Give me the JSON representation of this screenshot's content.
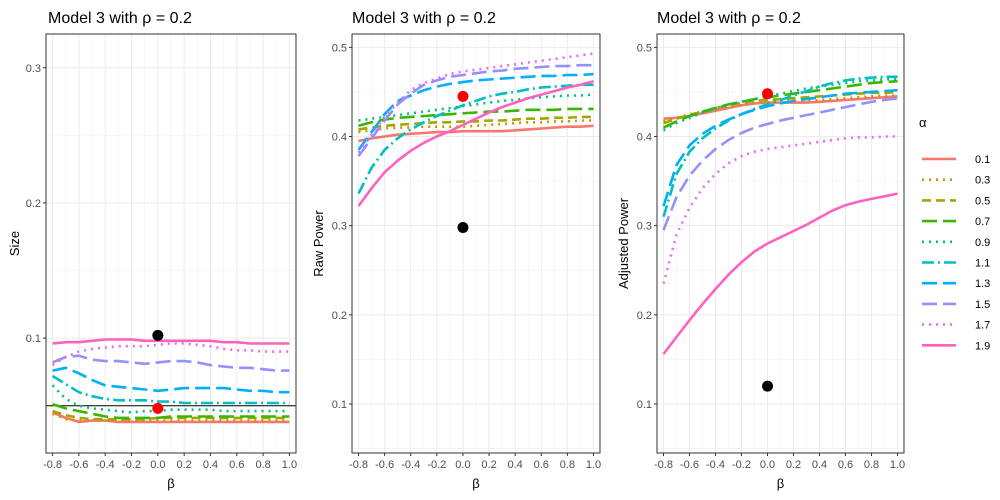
{
  "chart_data": {
    "type": "line",
    "legend": {
      "title": "α",
      "position": "right",
      "entries": [
        {
          "label": "0.1",
          "color": "#F8766D",
          "dash": "solid"
        },
        {
          "label": "0.3",
          "color": "#D89000",
          "dash": "dot"
        },
        {
          "label": "0.5",
          "color": "#A3A500",
          "dash": "dash"
        },
        {
          "label": "0.7",
          "color": "#39B600",
          "dash": "longdash"
        },
        {
          "label": "0.9",
          "color": "#00BF7D",
          "dash": "dot"
        },
        {
          "label": "1.1",
          "color": "#00BFC4",
          "dash": "dashdot"
        },
        {
          "label": "1.3",
          "color": "#00B0F6",
          "dash": "longdash"
        },
        {
          "label": "1.5",
          "color": "#9590FF",
          "dash": "longdash"
        },
        {
          "label": "1.7",
          "color": "#E76BF3",
          "dash": "dot"
        },
        {
          "label": "1.9",
          "color": "#FF62BC",
          "dash": "solid"
        }
      ]
    },
    "panels": [
      {
        "title": "Model 3 with ρ =  0.2",
        "xlabel": "β",
        "ylabel": "Size",
        "xlim": [
          -0.85,
          1.05
        ],
        "ylim": [
          0.015,
          0.325
        ],
        "yticks": [
          0.1,
          0.2,
          0.3
        ],
        "ytick_labels": [
          "0.1",
          "0.2",
          "0.3"
        ],
        "x": [
          -0.8,
          -0.7,
          -0.6,
          -0.5,
          -0.4,
          -0.3,
          -0.2,
          -0.1,
          0.0,
          0.1,
          0.2,
          0.3,
          0.4,
          0.5,
          0.6,
          0.7,
          0.8,
          0.9,
          1.0
        ],
        "hline": 0.05,
        "points": [
          {
            "x": 0.0,
            "y": 0.102,
            "color": "#000000"
          },
          {
            "x": 0.0,
            "y": 0.048,
            "color": "#FF0000"
          }
        ],
        "series": [
          {
            "name": "0.1",
            "values": [
              0.045,
              0.041,
              0.038,
              0.039,
              0.039,
              0.038,
              0.038,
              0.038,
              0.038,
              0.038,
              0.038,
              0.038,
              0.038,
              0.038,
              0.038,
              0.038,
              0.038,
              0.038,
              0.038
            ]
          },
          {
            "name": "0.3",
            "values": [
              0.044,
              0.04,
              0.039,
              0.04,
              0.039,
              0.039,
              0.039,
              0.039,
              0.039,
              0.039,
              0.039,
              0.039,
              0.039,
              0.039,
              0.039,
              0.039,
              0.039,
              0.039,
              0.039
            ]
          },
          {
            "name": "0.5",
            "values": [
              0.046,
              0.043,
              0.041,
              0.04,
              0.04,
              0.04,
              0.04,
              0.04,
              0.041,
              0.041,
              0.041,
              0.041,
              0.041,
              0.041,
              0.041,
              0.041,
              0.041,
              0.041,
              0.041
            ]
          },
          {
            "name": "0.7",
            "values": [
              0.051,
              0.048,
              0.046,
              0.044,
              0.042,
              0.041,
              0.041,
              0.041,
              0.041,
              0.042,
              0.042,
              0.042,
              0.042,
              0.042,
              0.042,
              0.042,
              0.042,
              0.042,
              0.042
            ]
          },
          {
            "name": "0.9",
            "values": [
              0.065,
              0.055,
              0.05,
              0.048,
              0.047,
              0.046,
              0.045,
              0.046,
              0.046,
              0.047,
              0.047,
              0.047,
              0.047,
              0.046,
              0.046,
              0.046,
              0.046,
              0.046,
              0.046
            ]
          },
          {
            "name": "1.1",
            "values": [
              0.072,
              0.066,
              0.06,
              0.057,
              0.055,
              0.054,
              0.054,
              0.054,
              0.053,
              0.053,
              0.052,
              0.052,
              0.052,
              0.052,
              0.052,
              0.052,
              0.052,
              0.052,
              0.052
            ]
          },
          {
            "name": "1.3",
            "values": [
              0.076,
              0.078,
              0.074,
              0.069,
              0.065,
              0.064,
              0.063,
              0.062,
              0.061,
              0.062,
              0.063,
              0.063,
              0.063,
              0.063,
              0.062,
              0.061,
              0.061,
              0.06,
              0.06
            ]
          },
          {
            "name": "1.5",
            "values": [
              0.082,
              0.086,
              0.087,
              0.084,
              0.083,
              0.083,
              0.082,
              0.081,
              0.082,
              0.083,
              0.083,
              0.082,
              0.08,
              0.079,
              0.078,
              0.078,
              0.077,
              0.076,
              0.076
            ]
          },
          {
            "name": "1.7",
            "values": [
              0.08,
              0.086,
              0.09,
              0.092,
              0.093,
              0.094,
              0.094,
              0.094,
              0.095,
              0.096,
              0.096,
              0.095,
              0.094,
              0.092,
              0.091,
              0.091,
              0.09,
              0.09,
              0.09
            ]
          },
          {
            "name": "1.9",
            "values": [
              0.096,
              0.097,
              0.097,
              0.098,
              0.099,
              0.099,
              0.099,
              0.098,
              0.098,
              0.098,
              0.098,
              0.098,
              0.098,
              0.097,
              0.097,
              0.096,
              0.096,
              0.096,
              0.096
            ]
          }
        ]
      },
      {
        "title": "Model 3 with ρ =  0.2",
        "xlabel": "β",
        "ylabel": "Raw Power",
        "xlim": [
          -0.85,
          1.05
        ],
        "ylim": [
          0.045,
          0.515
        ],
        "yticks": [
          0.1,
          0.2,
          0.3,
          0.4,
          0.5
        ],
        "ytick_labels": [
          "0.1",
          "0.2",
          "0.3",
          "0.4",
          "0.5"
        ],
        "x": [
          -0.8,
          -0.7,
          -0.6,
          -0.5,
          -0.4,
          -0.3,
          -0.2,
          -0.1,
          0.0,
          0.1,
          0.2,
          0.3,
          0.4,
          0.5,
          0.6,
          0.7,
          0.8,
          0.9,
          1.0
        ],
        "points": [
          {
            "x": 0.0,
            "y": 0.298,
            "color": "#000000"
          },
          {
            "x": 0.0,
            "y": 0.445,
            "color": "#FF0000"
          }
        ],
        "series": [
          {
            "name": "0.1",
            "values": [
              0.395,
              0.398,
              0.4,
              0.402,
              0.403,
              0.404,
              0.405,
              0.405,
              0.406,
              0.406,
              0.406,
              0.406,
              0.407,
              0.408,
              0.409,
              0.41,
              0.411,
              0.411,
              0.412
            ]
          },
          {
            "name": "0.3",
            "values": [
              0.405,
              0.407,
              0.409,
              0.41,
              0.41,
              0.411,
              0.411,
              0.411,
              0.411,
              0.412,
              0.413,
              0.414,
              0.415,
              0.416,
              0.416,
              0.417,
              0.417,
              0.418,
              0.418
            ]
          },
          {
            "name": "0.5",
            "values": [
              0.408,
              0.41,
              0.412,
              0.413,
              0.414,
              0.415,
              0.416,
              0.416,
              0.417,
              0.417,
              0.418,
              0.418,
              0.419,
              0.42,
              0.42,
              0.421,
              0.421,
              0.422,
              0.422
            ]
          },
          {
            "name": "0.7",
            "values": [
              0.412,
              0.416,
              0.419,
              0.421,
              0.422,
              0.423,
              0.424,
              0.425,
              0.426,
              0.427,
              0.428,
              0.428,
              0.429,
              0.43,
              0.43,
              0.43,
              0.431,
              0.431,
              0.431
            ]
          },
          {
            "name": "0.9",
            "values": [
              0.418,
              0.42,
              0.422,
              0.424,
              0.426,
              0.428,
              0.43,
              0.432,
              0.434,
              0.436,
              0.438,
              0.44,
              0.441,
              0.443,
              0.444,
              0.445,
              0.446,
              0.446,
              0.447
            ]
          },
          {
            "name": "1.1",
            "values": [
              0.336,
              0.365,
              0.385,
              0.398,
              0.408,
              0.416,
              0.423,
              0.429,
              0.435,
              0.44,
              0.445,
              0.448,
              0.45,
              0.453,
              0.455,
              0.456,
              0.457,
              0.458,
              0.458
            ]
          },
          {
            "name": "1.3",
            "values": [
              0.385,
              0.405,
              0.425,
              0.44,
              0.446,
              0.452,
              0.456,
              0.459,
              0.461,
              0.463,
              0.464,
              0.465,
              0.466,
              0.467,
              0.468,
              0.468,
              0.469,
              0.469,
              0.47
            ]
          },
          {
            "name": "1.5",
            "values": [
              0.378,
              0.398,
              0.418,
              0.436,
              0.448,
              0.458,
              0.463,
              0.467,
              0.469,
              0.471,
              0.473,
              0.474,
              0.476,
              0.477,
              0.478,
              0.479,
              0.479,
              0.48,
              0.48
            ]
          },
          {
            "name": "1.7",
            "values": [
              0.382,
              0.402,
              0.422,
              0.438,
              0.452,
              0.46,
              0.465,
              0.47,
              0.473,
              0.475,
              0.477,
              0.479,
              0.481,
              0.483,
              0.485,
              0.487,
              0.489,
              0.491,
              0.493
            ]
          },
          {
            "name": "1.9",
            "values": [
              0.322,
              0.342,
              0.36,
              0.373,
              0.384,
              0.393,
              0.4,
              0.406,
              0.413,
              0.42,
              0.427,
              0.433,
              0.438,
              0.443,
              0.447,
              0.451,
              0.455,
              0.458,
              0.462
            ]
          }
        ]
      },
      {
        "title": "Model 3 with ρ =  0.2",
        "xlabel": "β",
        "ylabel": "Adjusted Power",
        "xlim": [
          -0.85,
          1.05
        ],
        "ylim": [
          0.045,
          0.515
        ],
        "yticks": [
          0.1,
          0.2,
          0.3,
          0.4,
          0.5
        ],
        "ytick_labels": [
          "0.1",
          "0.2",
          "0.3",
          "0.4",
          "0.5"
        ],
        "x": [
          -0.8,
          -0.7,
          -0.6,
          -0.5,
          -0.4,
          -0.3,
          -0.2,
          -0.1,
          0.0,
          0.1,
          0.2,
          0.3,
          0.4,
          0.5,
          0.6,
          0.7,
          0.8,
          0.9,
          1.0
        ],
        "points": [
          {
            "x": 0.0,
            "y": 0.12,
            "color": "#000000"
          },
          {
            "x": 0.0,
            "y": 0.448,
            "color": "#FF0000"
          }
        ],
        "series": [
          {
            "name": "0.1",
            "values": [
              0.42,
              0.421,
              0.423,
              0.426,
              0.429,
              0.432,
              0.435,
              0.437,
              0.438,
              0.438,
              0.438,
              0.438,
              0.439,
              0.44,
              0.441,
              0.442,
              0.443,
              0.444,
              0.445
            ]
          },
          {
            "name": "0.3",
            "values": [
              0.417,
              0.421,
              0.425,
              0.428,
              0.431,
              0.434,
              0.436,
              0.438,
              0.439,
              0.439,
              0.44,
              0.44,
              0.441,
              0.442,
              0.443,
              0.444,
              0.445,
              0.446,
              0.446
            ]
          },
          {
            "name": "0.5",
            "values": [
              0.415,
              0.42,
              0.424,
              0.428,
              0.432,
              0.435,
              0.438,
              0.44,
              0.441,
              0.442,
              0.443,
              0.444,
              0.445,
              0.446,
              0.447,
              0.448,
              0.449,
              0.449,
              0.45
            ]
          },
          {
            "name": "0.7",
            "values": [
              0.41,
              0.417,
              0.423,
              0.428,
              0.432,
              0.436,
              0.439,
              0.442,
              0.444,
              0.446,
              0.448,
              0.45,
              0.452,
              0.454,
              0.456,
              0.458,
              0.46,
              0.461,
              0.462
            ]
          },
          {
            "name": "0.9",
            "values": [
              0.407,
              0.415,
              0.421,
              0.427,
              0.431,
              0.436,
              0.439,
              0.442,
              0.445,
              0.448,
              0.451,
              0.454,
              0.456,
              0.458,
              0.46,
              0.462,
              0.463,
              0.464,
              0.465
            ]
          },
          {
            "name": "1.1",
            "values": [
              0.31,
              0.358,
              0.383,
              0.398,
              0.409,
              0.418,
              0.425,
              0.431,
              0.436,
              0.441,
              0.446,
              0.451,
              0.456,
              0.46,
              0.463,
              0.465,
              0.466,
              0.467,
              0.467
            ]
          },
          {
            "name": "1.3",
            "values": [
              0.322,
              0.368,
              0.39,
              0.403,
              0.412,
              0.419,
              0.425,
              0.43,
              0.434,
              0.437,
              0.44,
              0.442,
              0.444,
              0.446,
              0.448,
              0.449,
              0.45,
              0.451,
              0.452
            ]
          },
          {
            "name": "1.5",
            "values": [
              0.295,
              0.332,
              0.356,
              0.373,
              0.386,
              0.396,
              0.404,
              0.41,
              0.414,
              0.418,
              0.421,
              0.424,
              0.427,
              0.43,
              0.433,
              0.436,
              0.439,
              0.441,
              0.443
            ]
          },
          {
            "name": "1.7",
            "values": [
              0.235,
              0.29,
              0.32,
              0.342,
              0.358,
              0.37,
              0.378,
              0.383,
              0.386,
              0.388,
              0.39,
              0.392,
              0.394,
              0.396,
              0.398,
              0.399,
              0.399,
              0.4,
              0.4
            ]
          },
          {
            "name": "1.9",
            "values": [
              0.156,
              0.175,
              0.194,
              0.212,
              0.229,
              0.245,
              0.259,
              0.271,
              0.28,
              0.287,
              0.294,
              0.301,
              0.309,
              0.317,
              0.323,
              0.327,
              0.33,
              0.333,
              0.336
            ]
          }
        ]
      }
    ]
  }
}
